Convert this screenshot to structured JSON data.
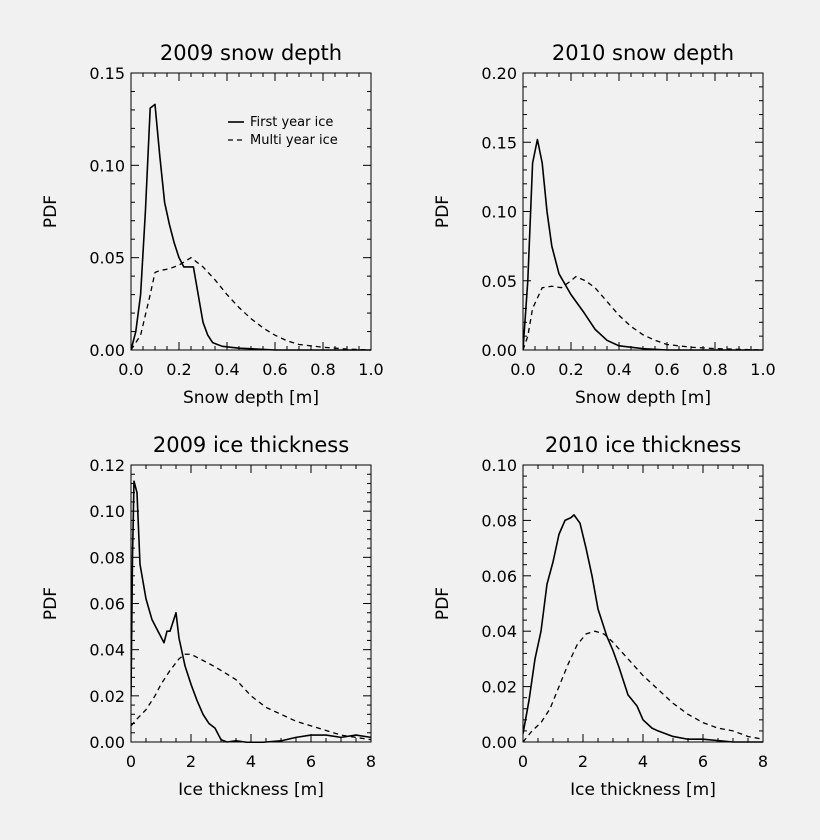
{
  "chart_data": [
    {
      "type": "line",
      "title": "2009 snow depth",
      "xlabel": "Snow depth [m]",
      "ylabel": "PDF",
      "xlim": [
        0,
        1.0
      ],
      "ylim": [
        0,
        0.15
      ],
      "xticks": [
        "0.0",
        "0.2",
        "0.4",
        "0.6",
        "0.8",
        "1.0"
      ],
      "yticks": [
        "0.00",
        "0.05",
        "0.10",
        "0.15"
      ],
      "legend": {
        "entries": [
          "First year ice",
          "Multi year ice"
        ],
        "position": "top-right"
      },
      "series": [
        {
          "name": "First year ice",
          "style": "solid",
          "points": [
            [
              0,
              0
            ],
            [
              0.02,
              0.01
            ],
            [
              0.04,
              0.03
            ],
            [
              0.06,
              0.075
            ],
            [
              0.08,
              0.131
            ],
            [
              0.1,
              0.133
            ],
            [
              0.12,
              0.105
            ],
            [
              0.14,
              0.08
            ],
            [
              0.16,
              0.068
            ],
            [
              0.18,
              0.058
            ],
            [
              0.2,
              0.05
            ],
            [
              0.22,
              0.045
            ],
            [
              0.24,
              0.045
            ],
            [
              0.26,
              0.045
            ],
            [
              0.28,
              0.03
            ],
            [
              0.3,
              0.015
            ],
            [
              0.32,
              0.008
            ],
            [
              0.34,
              0.004
            ],
            [
              0.38,
              0.002
            ],
            [
              0.45,
              0.001
            ],
            [
              0.6,
              0
            ],
            [
              1.0,
              0
            ]
          ]
        },
        {
          "name": "Multi year ice",
          "style": "dashed",
          "points": [
            [
              0,
              0
            ],
            [
              0.04,
              0.008
            ],
            [
              0.08,
              0.03
            ],
            [
              0.1,
              0.042
            ],
            [
              0.12,
              0.043
            ],
            [
              0.16,
              0.044
            ],
            [
              0.2,
              0.046
            ],
            [
              0.25,
              0.05
            ],
            [
              0.3,
              0.045
            ],
            [
              0.35,
              0.038
            ],
            [
              0.4,
              0.03
            ],
            [
              0.45,
              0.023
            ],
            [
              0.5,
              0.017
            ],
            [
              0.55,
              0.012
            ],
            [
              0.6,
              0.008
            ],
            [
              0.65,
              0.005
            ],
            [
              0.7,
              0.003
            ],
            [
              0.8,
              0.0015
            ],
            [
              0.9,
              0.0005
            ],
            [
              1.0,
              0
            ]
          ]
        }
      ]
    },
    {
      "type": "line",
      "title": "2010 snow depth",
      "xlabel": "Snow depth [m]",
      "ylabel": "PDF",
      "xlim": [
        0,
        1.0
      ],
      "ylim": [
        0,
        0.2
      ],
      "xticks": [
        "0.0",
        "0.2",
        "0.4",
        "0.6",
        "0.8",
        "1.0"
      ],
      "yticks": [
        "0.00",
        "0.05",
        "0.10",
        "0.15",
        "0.20"
      ],
      "series": [
        {
          "name": "First year ice",
          "style": "solid",
          "points": [
            [
              0,
              0
            ],
            [
              0.02,
              0.05
            ],
            [
              0.04,
              0.135
            ],
            [
              0.06,
              0.152
            ],
            [
              0.08,
              0.135
            ],
            [
              0.1,
              0.1
            ],
            [
              0.12,
              0.075
            ],
            [
              0.15,
              0.055
            ],
            [
              0.2,
              0.04
            ],
            [
              0.25,
              0.028
            ],
            [
              0.3,
              0.015
            ],
            [
              0.35,
              0.007
            ],
            [
              0.4,
              0.003
            ],
            [
              0.5,
              0.001
            ],
            [
              0.6,
              0
            ],
            [
              1.0,
              0
            ]
          ]
        },
        {
          "name": "Multi year ice",
          "style": "dashed",
          "points": [
            [
              0,
              0
            ],
            [
              0.02,
              0.01
            ],
            [
              0.04,
              0.03
            ],
            [
              0.08,
              0.045
            ],
            [
              0.12,
              0.046
            ],
            [
              0.16,
              0.045
            ],
            [
              0.2,
              0.05
            ],
            [
              0.22,
              0.053
            ],
            [
              0.26,
              0.05
            ],
            [
              0.3,
              0.045
            ],
            [
              0.35,
              0.035
            ],
            [
              0.4,
              0.025
            ],
            [
              0.45,
              0.017
            ],
            [
              0.5,
              0.011
            ],
            [
              0.55,
              0.007
            ],
            [
              0.6,
              0.004
            ],
            [
              0.7,
              0.002
            ],
            [
              0.8,
              0.001
            ],
            [
              1.0,
              0
            ]
          ]
        }
      ]
    },
    {
      "type": "line",
      "title": "2009 ice thickness",
      "xlabel": "Ice thickness [m]",
      "ylabel": "PDF",
      "xlim": [
        0,
        8
      ],
      "ylim": [
        0,
        0.12
      ],
      "xticks": [
        "0",
        "2",
        "4",
        "6",
        "8"
      ],
      "yticks": [
        "0.00",
        "0.02",
        "0.04",
        "0.06",
        "0.08",
        "0.10",
        "0.12"
      ],
      "series": [
        {
          "name": "First year ice",
          "style": "solid",
          "points": [
            [
              0,
              0.02
            ],
            [
              0.05,
              0.08
            ],
            [
              0.1,
              0.113
            ],
            [
              0.2,
              0.108
            ],
            [
              0.3,
              0.077
            ],
            [
              0.5,
              0.062
            ],
            [
              0.7,
              0.053
            ],
            [
              0.9,
              0.048
            ],
            [
              1.1,
              0.043
            ],
            [
              1.2,
              0.048
            ],
            [
              1.3,
              0.048
            ],
            [
              1.5,
              0.056
            ],
            [
              1.6,
              0.045
            ],
            [
              1.8,
              0.033
            ],
            [
              2.0,
              0.025
            ],
            [
              2.2,
              0.018
            ],
            [
              2.4,
              0.012
            ],
            [
              2.6,
              0.008
            ],
            [
              2.8,
              0.006
            ],
            [
              3.0,
              0.001
            ],
            [
              3.2,
              0
            ],
            [
              3.5,
              0.0005
            ],
            [
              3.8,
              0
            ],
            [
              4.0,
              -0.0005
            ],
            [
              4.5,
              0
            ],
            [
              5.0,
              0.0005
            ],
            [
              5.5,
              0.002
            ],
            [
              6.0,
              0.003
            ],
            [
              6.5,
              0.003
            ],
            [
              7.0,
              0.002
            ],
            [
              7.5,
              0.003
            ],
            [
              8.0,
              0.002
            ]
          ]
        },
        {
          "name": "Multi year ice",
          "style": "dashed",
          "points": [
            [
              0,
              0.007
            ],
            [
              0.2,
              0.01
            ],
            [
              0.5,
              0.014
            ],
            [
              0.8,
              0.02
            ],
            [
              1.0,
              0.025
            ],
            [
              1.3,
              0.031
            ],
            [
              1.6,
              0.036
            ],
            [
              1.8,
              0.038
            ],
            [
              2.0,
              0.038
            ],
            [
              2.3,
              0.036
            ],
            [
              2.6,
              0.034
            ],
            [
              3.0,
              0.031
            ],
            [
              3.5,
              0.027
            ],
            [
              4.0,
              0.02
            ],
            [
              4.5,
              0.015
            ],
            [
              5.0,
              0.012
            ],
            [
              5.5,
              0.009
            ],
            [
              6.0,
              0.007
            ],
            [
              6.5,
              0.005
            ],
            [
              7.0,
              0.003
            ],
            [
              7.5,
              0.002
            ],
            [
              8.0,
              0.001
            ]
          ]
        }
      ]
    },
    {
      "type": "line",
      "title": "2010 ice thickness",
      "xlabel": "Ice thickness [m]",
      "ylabel": "PDF",
      "xlim": [
        0,
        8
      ],
      "ylim": [
        0,
        0.1
      ],
      "xticks": [
        "0",
        "2",
        "4",
        "6",
        "8"
      ],
      "yticks": [
        "0.00",
        "0.02",
        "0.04",
        "0.06",
        "0.08",
        "0.10"
      ],
      "series": [
        {
          "name": "First year ice",
          "style": "solid",
          "points": [
            [
              0,
              0.003
            ],
            [
              0.2,
              0.015
            ],
            [
              0.4,
              0.03
            ],
            [
              0.6,
              0.04
            ],
            [
              0.8,
              0.057
            ],
            [
              1.0,
              0.065
            ],
            [
              1.2,
              0.075
            ],
            [
              1.4,
              0.08
            ],
            [
              1.6,
              0.081
            ],
            [
              1.7,
              0.082
            ],
            [
              1.9,
              0.079
            ],
            [
              2.1,
              0.07
            ],
            [
              2.3,
              0.06
            ],
            [
              2.5,
              0.048
            ],
            [
              2.8,
              0.038
            ],
            [
              3.0,
              0.033
            ],
            [
              3.2,
              0.027
            ],
            [
              3.5,
              0.017
            ],
            [
              3.8,
              0.013
            ],
            [
              4.0,
              0.008
            ],
            [
              4.3,
              0.005
            ],
            [
              4.5,
              0.004
            ],
            [
              5.0,
              0.002
            ],
            [
              5.5,
              0.001
            ],
            [
              6.0,
              0.001
            ],
            [
              7.0,
              0
            ],
            [
              8.0,
              0
            ]
          ]
        },
        {
          "name": "Multi year ice",
          "style": "dashed",
          "points": [
            [
              0,
              0
            ],
            [
              0.3,
              0.004
            ],
            [
              0.6,
              0.007
            ],
            [
              0.9,
              0.012
            ],
            [
              1.2,
              0.02
            ],
            [
              1.5,
              0.028
            ],
            [
              1.8,
              0.035
            ],
            [
              2.1,
              0.039
            ],
            [
              2.4,
              0.04
            ],
            [
              2.7,
              0.039
            ],
            [
              3.0,
              0.036
            ],
            [
              3.5,
              0.03
            ],
            [
              4.0,
              0.024
            ],
            [
              4.5,
              0.019
            ],
            [
              5.0,
              0.014
            ],
            [
              5.5,
              0.01
            ],
            [
              6.0,
              0.007
            ],
            [
              6.5,
              0.005
            ],
            [
              7.0,
              0.004
            ],
            [
              7.5,
              0.002
            ],
            [
              8.0,
              0.001
            ]
          ]
        }
      ]
    }
  ]
}
